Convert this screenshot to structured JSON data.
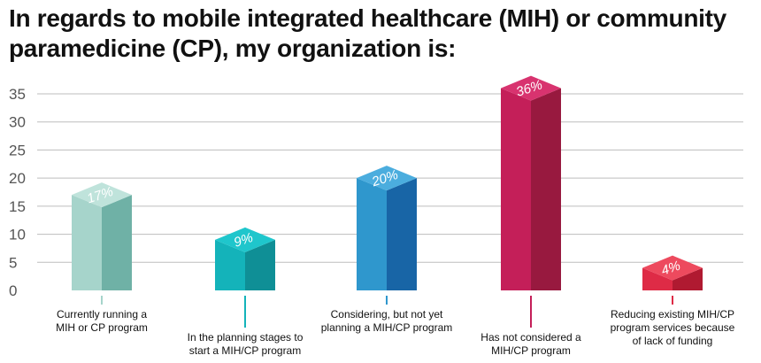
{
  "chart_data": {
    "type": "bar",
    "title": "In regards to mobile integrated healthcare (MIH) or community paramedicine (CP), my organization is:",
    "ylim": [
      0,
      35
    ],
    "yticks": [
      0,
      5,
      10,
      15,
      20,
      25,
      30,
      35
    ],
    "grid": true,
    "categories": [
      "Currently running a MIH or CP program",
      "In the planning stages to start a MIH/CP program",
      "Considering, but not yet planning a MIH/CP program",
      "Has not considered a MIH/CP program",
      "Reducing existing MIH/CP program services because of lack of funding"
    ],
    "category_lines": [
      [
        "Currently running a",
        "MIH or CP program"
      ],
      [
        "In the planning stages to",
        "start a MIH/CP program"
      ],
      [
        "Considering, but not yet",
        "planning a MIH/CP program"
      ],
      [
        "Has not considered a",
        "MIH/CP program"
      ],
      [
        "Reducing existing MIH/CP",
        "program services because",
        "of lack of funding"
      ]
    ],
    "values": [
      17,
      9,
      20,
      36,
      4
    ],
    "data_labels": [
      "17%",
      "9%",
      "20%",
      "36%",
      "4%"
    ],
    "colors": {
      "front": [
        "#a6d4cb",
        "#14b3ba",
        "#2f97cd",
        "#c41f59",
        "#de2b46"
      ],
      "side": [
        "#6fb1a6",
        "#0f8f96",
        "#1865a6",
        "#98193f",
        "#b01a31"
      ],
      "top": [
        "#bfe3db",
        "#1fc6cc",
        "#4badde",
        "#d8336f",
        "#ed4a5e"
      ]
    }
  }
}
